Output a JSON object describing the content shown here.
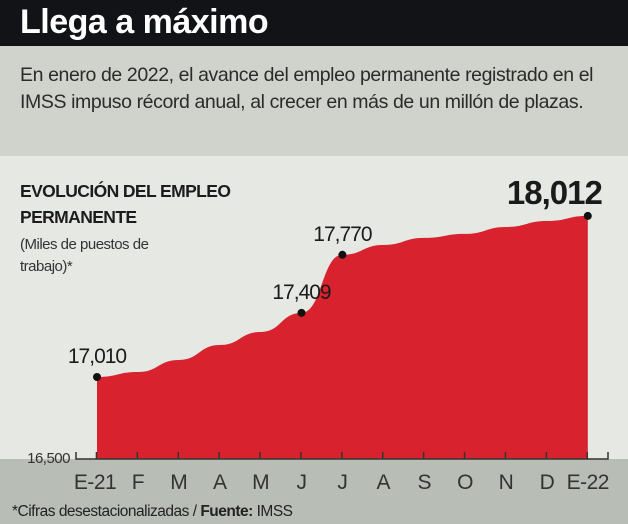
{
  "header": {
    "title": "Llega a máximo"
  },
  "subtitle": "En enero de 2022, el avance del empleo permanente registrado en el IMSS impuso récord anual, al crecer en más de un millón de plazas.",
  "footer": {
    "note": "*Cifras desestacionalizadas / ",
    "source_label": "Fuente:",
    "source": " IMSS"
  },
  "colors": {
    "area": "#d8232f",
    "header_bg": "#111316"
  },
  "chart_data": {
    "type": "area",
    "title": "EVOLUCIÓN DEL EMPLEO PERMANENTE",
    "unit": "(Miles de puestos de trabajo)*",
    "categories": [
      "E-21",
      "F",
      "M",
      "A",
      "M",
      "J",
      "J",
      "A",
      "S",
      "O",
      "N",
      "D",
      "E-22"
    ],
    "values": [
      17010,
      17041,
      17116,
      17209,
      17290,
      17409,
      17770,
      17831,
      17875,
      17900,
      17943,
      17980,
      18012
    ],
    "labeled_points": [
      {
        "index": 0,
        "label": "17,010"
      },
      {
        "index": 5,
        "label": "17,409"
      },
      {
        "index": 6,
        "label": "17,770"
      },
      {
        "index": 12,
        "label": "18,012"
      }
    ],
    "y_tick_label": "16,500",
    "ylim": [
      16500,
      18012
    ],
    "grid": false
  }
}
